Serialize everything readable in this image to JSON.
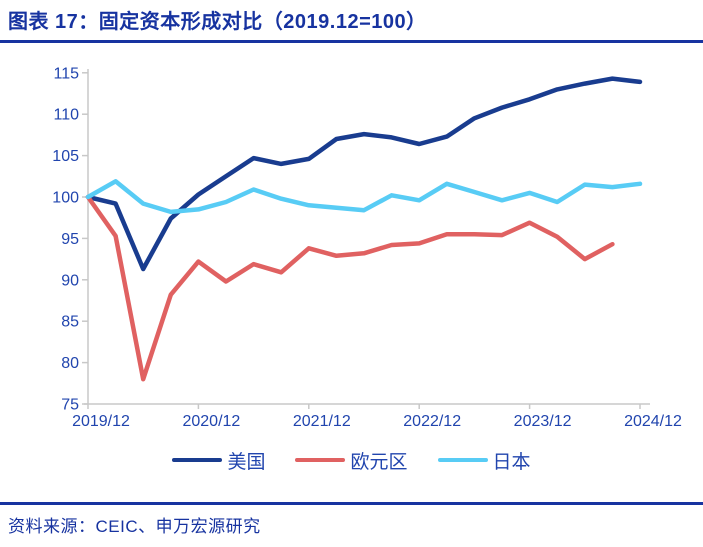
{
  "title": "图表 17：固定资本形成对比（2019.12=100）",
  "source_note": "资料来源：CEIC、申万宏源研究",
  "colors": {
    "title_text": "#1733A0",
    "rule": "#1733A0",
    "axis_text": "#2145AE",
    "axis_line": "#C8C8C8",
    "source_text": "#1733A0",
    "legend_text": "#2145AE"
  },
  "chart_data": {
    "type": "line",
    "title": "固定资本形成对比（2019.12=100）",
    "x": [
      "2019/12",
      "2020/03",
      "2020/06",
      "2020/09",
      "2020/12",
      "2021/03",
      "2021/06",
      "2021/09",
      "2021/12",
      "2022/03",
      "2022/06",
      "2022/09",
      "2022/12",
      "2023/03",
      "2023/06",
      "2023/09",
      "2023/12",
      "2024/03",
      "2024/06",
      "2024/09",
      "2024/12"
    ],
    "x_axis_tick_labels": [
      "2019/12",
      "2020/12",
      "2021/12",
      "2022/12",
      "2023/12",
      "2024/12"
    ],
    "y_ticks": [
      75,
      80,
      85,
      90,
      95,
      100,
      105,
      110,
      115
    ],
    "ylim": [
      75,
      115
    ],
    "grid": false,
    "legend_position": "bottom",
    "series": [
      {
        "key": "us",
        "name": "美国",
        "color": "#193C8F",
        "values": [
          100,
          99.2,
          91.3,
          97.4,
          100.3,
          102.5,
          104.7,
          104.0,
          104.6,
          107.0,
          107.6,
          107.2,
          106.4,
          107.3,
          109.5,
          110.8,
          111.8,
          113.0,
          113.7,
          114.3,
          113.9
        ]
      },
      {
        "key": "eurozone",
        "name": "欧元区",
        "color": "#E06161",
        "values": [
          100,
          95.3,
          78.0,
          88.2,
          92.2,
          89.8,
          91.9,
          90.9,
          93.8,
          92.9,
          93.2,
          94.2,
          94.4,
          95.5,
          95.5,
          95.4,
          96.9,
          95.2,
          92.5,
          94.3
        ]
      },
      {
        "key": "japan",
        "name": "日本",
        "color": "#58CCF5",
        "values": [
          100,
          101.9,
          99.2,
          98.2,
          98.5,
          99.4,
          100.9,
          99.8,
          99.0,
          98.7,
          98.4,
          100.2,
          99.6,
          101.6,
          100.6,
          99.6,
          100.5,
          99.4,
          101.5,
          101.2,
          101.6
        ]
      }
    ]
  }
}
